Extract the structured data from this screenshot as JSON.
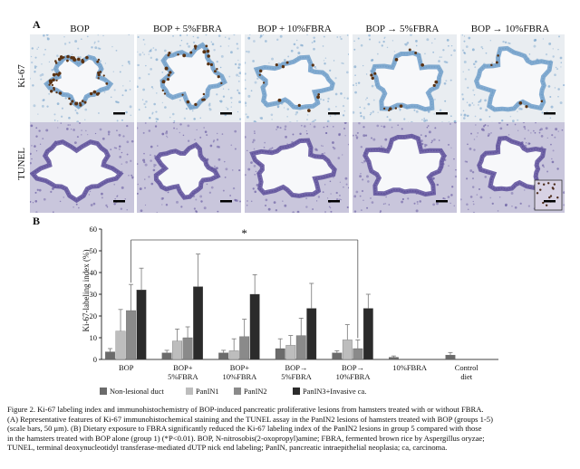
{
  "panel_a": {
    "letter": "A",
    "columns": [
      "BOP",
      "BOP + 5%FBRA",
      "BOP + 10%FBRA",
      "BOP → 5%FBRA",
      "BOP → 10%FBRA"
    ],
    "rows": [
      "Ki-67",
      "TUNEL"
    ]
  },
  "panel_b": {
    "letter": "B"
  },
  "chart_data": {
    "type": "bar",
    "ylabel": "Ki-67-labeling index (%)",
    "ylim": [
      0,
      60
    ],
    "yticks": [
      0,
      10,
      20,
      30,
      40,
      50,
      60
    ],
    "categories": [
      "BOP",
      "BOP+\n5%FBRA",
      "BOP+\n10%FBRA",
      "BOP→\n5%FBRA",
      "BOP→\n10%FBRA",
      "10%FBRA",
      "Control\ndiet"
    ],
    "category_lines": [
      [
        "BOP"
      ],
      [
        "BOP+",
        "5%FBRA"
      ],
      [
        "BOP+",
        "10%FBRA"
      ],
      [
        "BOP→",
        "5%FBRA"
      ],
      [
        "BOP→",
        "10%FBRA"
      ],
      [
        "10%FBRA"
      ],
      [
        "Control",
        "diet"
      ]
    ],
    "series": [
      {
        "name": "Non-lesional duct",
        "color": "#6b6b6b",
        "values": [
          3.5,
          3,
          3,
          5,
          3,
          1,
          2
        ],
        "errors": [
          1.5,
          1.2,
          1.2,
          4.5,
          1.0,
          0.6,
          1.2
        ]
      },
      {
        "name": "PanIN1",
        "color": "#bdbdbd",
        "values": [
          13,
          8.5,
          4,
          6.5,
          9,
          null,
          null
        ],
        "errors": [
          10,
          5.5,
          5.5,
          4.5,
          7,
          null,
          null
        ]
      },
      {
        "name": "PanIN2",
        "color": "#8a8a8a",
        "values": [
          22.5,
          10,
          10.5,
          11,
          5,
          null,
          null
        ],
        "errors": [
          12,
          5,
          8,
          8,
          4,
          null,
          null
        ]
      },
      {
        "name": "PanIN3+Invasive ca.",
        "color": "#2b2b2b",
        "values": [
          32,
          33.5,
          30,
          23.5,
          23.5,
          null,
          null
        ],
        "errors": [
          10,
          15,
          9,
          11.5,
          6.5,
          null,
          null
        ]
      }
    ],
    "annotation": {
      "symbol": "*",
      "from_category": "BOP",
      "to_category": "BOP→\n10%FBRA"
    },
    "grid": false,
    "legend_position": "bottom"
  },
  "caption": {
    "lines": [
      "Figure 2. Ki-67 labeling index and immunohistochemistry of BOP-induced pancreatic proliferative lesions from hamsters treated with or without FBRA.",
      "(A) Representative features of Ki-67 immunohistochemical staining and the TUNEL assay in the PanIN2 lesions of hamsters treated with BOP (groups 1-5)",
      "(scale bars, 50 μm). (B) Dietary exposure to FBRA significantly reduced the Ki-67 labeling index of the PanIN2 lesions in group 5 compared with those",
      "in the hamsters treated with BOP alone (group 1) (*P<0.01). BOP, N-nitrosobis(2-oxopropyl)amine; FBRA, fermented brown rice by Aspergillus oryzae;",
      "TUNEL, terminal deoxynucleotidyl transferase-mediated dUTP nick end labeling; PanIN, pancreatic intraepithelial neoplasia; ca, carcinoma."
    ]
  },
  "colors": {
    "ki67_background": "#e9edf1",
    "ki67_epithelium": "#6f9ec9",
    "ki67_positive_nuclei": "#5a3212",
    "tunel_background": "#c9c6dc",
    "tunel_epithelium": "#5d4f9a",
    "lumen": "#f7f8fa",
    "scale_bar": "#000000"
  }
}
